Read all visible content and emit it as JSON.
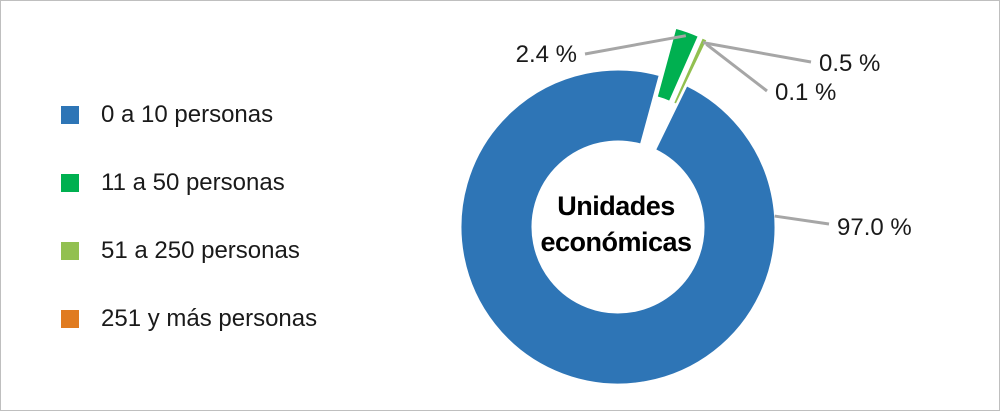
{
  "chart_data": {
    "type": "donut",
    "center_label": [
      "Unidades",
      "económicas"
    ],
    "categories": [
      "0 a 10 personas",
      "11 a 50 personas",
      "51 a 250 personas",
      "251 y más personas"
    ],
    "values": [
      97.0,
      2.4,
      0.5,
      0.1
    ],
    "data_labels": [
      "97.0 %",
      "2.4 %",
      "0.5 %",
      "0.1 %"
    ],
    "colors": [
      "#2e75b6",
      "#00b050",
      "#92c050",
      "#e07b20"
    ],
    "exploded_slices": [
      1,
      2,
      3
    ],
    "legend_position": "left"
  }
}
